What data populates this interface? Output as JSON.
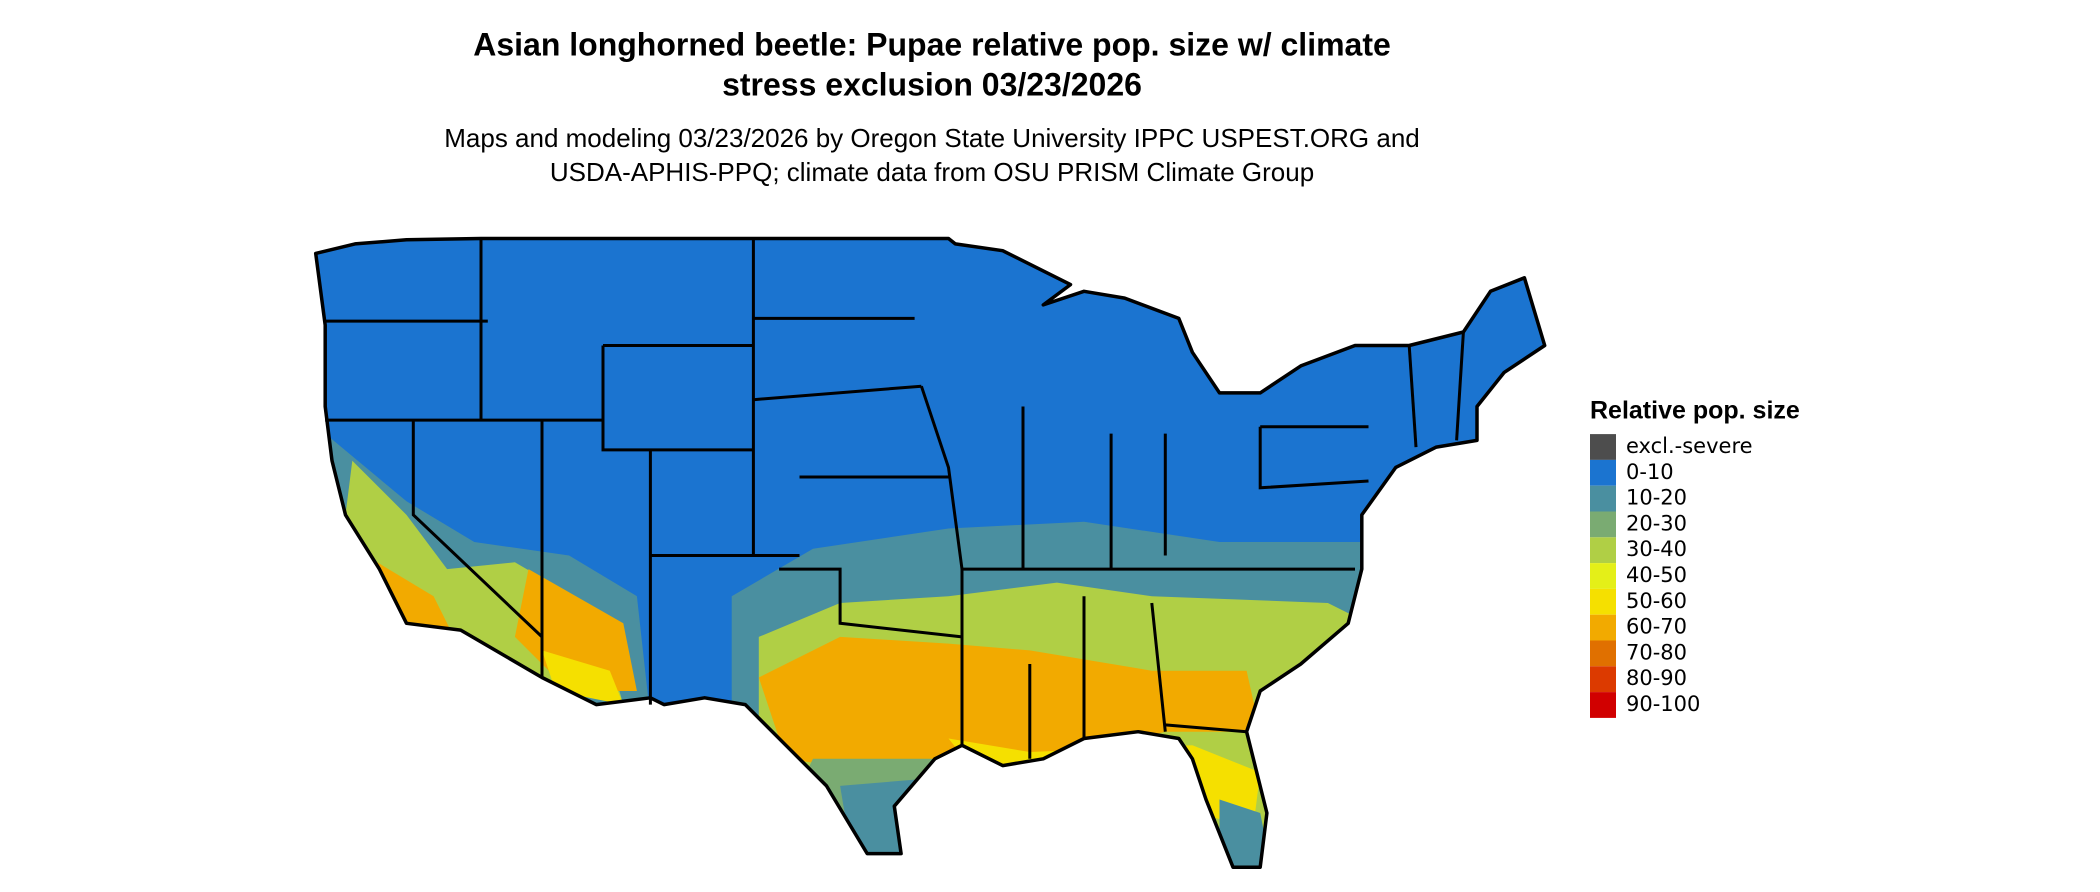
{
  "title": [
    "Asian longhorned beetle: Pupae relative pop. size w/ climate",
    "stress exclusion 03/23/2026"
  ],
  "subtitle": [
    "Maps and modeling 03/23/2026 by Oregon State University IPPC USPEST.ORG and",
    "USDA-APHIS-PPQ; climate data from OSU PRISM Climate Group"
  ],
  "legend": {
    "title": "Relative pop. size",
    "items": [
      {
        "label": "excl.-severe",
        "color": "#4d4d4d"
      },
      {
        "label": "0-10",
        "color": "#1b74d0"
      },
      {
        "label": "10-20",
        "color": "#4a8fa0"
      },
      {
        "label": "20-30",
        "color": "#7aab72"
      },
      {
        "label": "30-40",
        "color": "#b0cf45"
      },
      {
        "label": "40-50",
        "color": "#e4ef18"
      },
      {
        "label": "50-60",
        "color": "#f5e000"
      },
      {
        "label": "60-70",
        "color": "#f2aa00"
      },
      {
        "label": "70-80",
        "color": "#e07000"
      },
      {
        "label": "80-90",
        "color": "#dc3a00"
      },
      {
        "label": "90-100",
        "color": "#d10000"
      }
    ]
  }
}
